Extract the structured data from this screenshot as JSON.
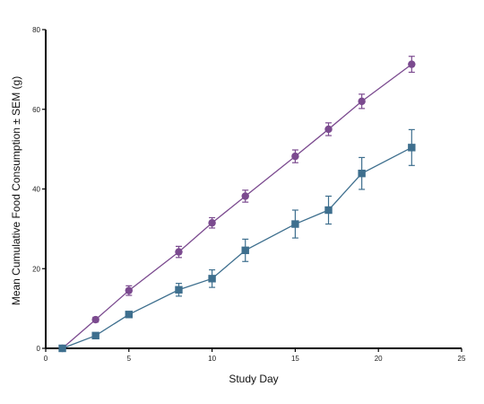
{
  "chart_data": {
    "type": "line",
    "xlabel": "Study Day",
    "ylabel": "Mean Cumulative Food Consumption ± SEM (g)",
    "xlim": [
      0,
      25
    ],
    "ylim": [
      0,
      80
    ],
    "xticks": [
      0,
      5,
      10,
      15,
      20,
      25
    ],
    "yticks": [
      0,
      20,
      40,
      60,
      80
    ],
    "grid": false,
    "legend": "none",
    "series": [
      {
        "marker": "circle",
        "color": "#7b4a8f",
        "x": [
          1,
          3,
          5,
          8,
          10,
          12,
          15,
          17,
          19,
          22
        ],
        "y": [
          0,
          7.2,
          14.5,
          24.2,
          31.5,
          38.2,
          48.2,
          55.0,
          62.0,
          71.3
        ],
        "sem": [
          0,
          0.6,
          1.2,
          1.4,
          1.3,
          1.5,
          1.6,
          1.6,
          1.8,
          2.0
        ]
      },
      {
        "marker": "square",
        "color": "#3e6f8e",
        "x": [
          1,
          3,
          5,
          8,
          10,
          12,
          15,
          17,
          19,
          22
        ],
        "y": [
          0,
          3.2,
          8.5,
          14.7,
          17.5,
          24.6,
          31.2,
          34.7,
          43.9,
          50.4
        ],
        "sem": [
          0,
          0.5,
          0.7,
          1.6,
          2.2,
          2.8,
          3.5,
          3.5,
          4.0,
          4.5
        ]
      }
    ]
  }
}
